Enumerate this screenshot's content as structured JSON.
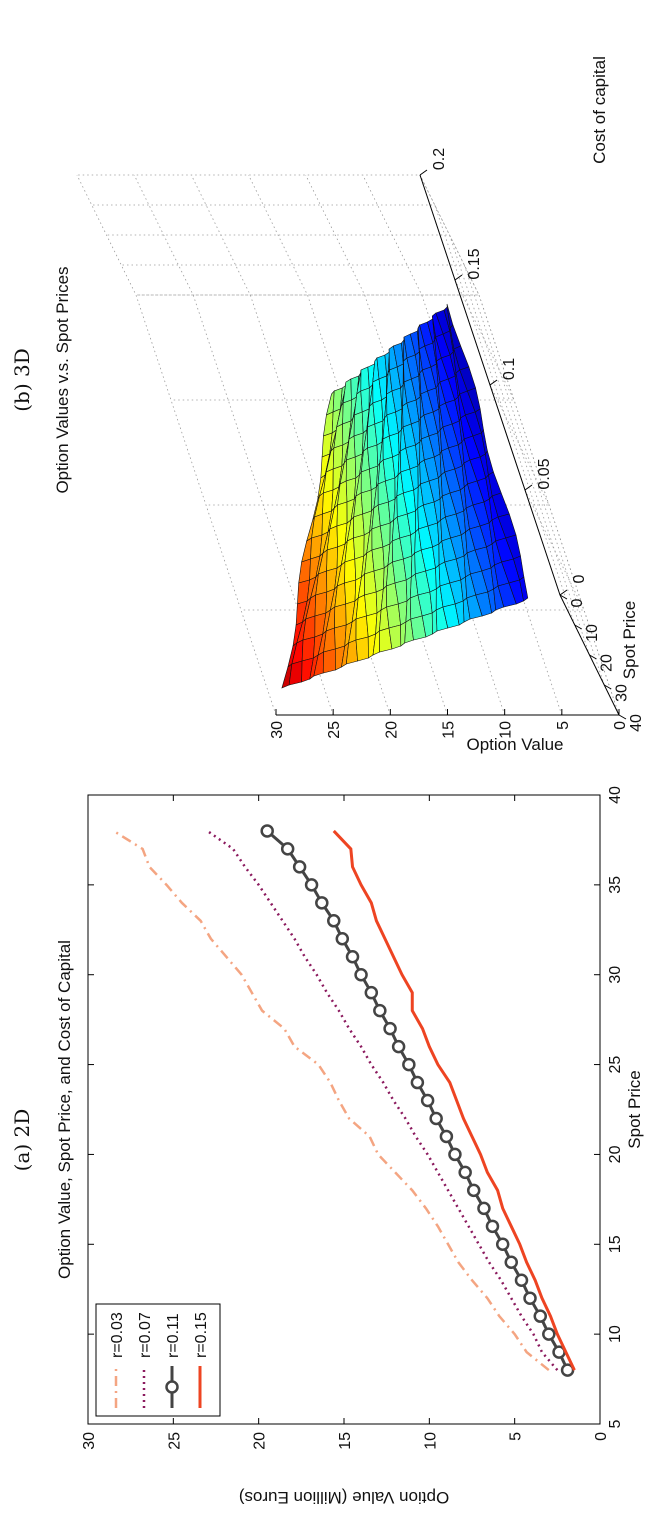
{
  "captions": {
    "a": "(a) 2D",
    "b": "(b) 3D"
  },
  "chart_data": [
    {
      "type": "line",
      "title": "Option Value, Spot Price, and Cost of Capital",
      "xlabel": "Spot Price",
      "ylabel": "Option Value (Million Euros)",
      "xlim": [
        5,
        40
      ],
      "ylim": [
        0,
        30
      ],
      "x_ticks": [
        "5",
        "10",
        "15",
        "20",
        "25",
        "30",
        "35",
        "40"
      ],
      "y_ticks": [
        "0",
        "5",
        "10",
        "15",
        "20",
        "25",
        "30"
      ],
      "legend_position": "top-left",
      "grid": false,
      "x": [
        8,
        9,
        10,
        11,
        12,
        13,
        14,
        15,
        16,
        17,
        18,
        19,
        20,
        21,
        22,
        23,
        24,
        25,
        26,
        27,
        28,
        29,
        30,
        31,
        32,
        33,
        34,
        35,
        36,
        37,
        38
      ],
      "series": [
        {
          "name": "r=0.03",
          "color": "#f4a582",
          "style": "dashdot",
          "values": [
            3.0,
            4.3,
            5.0,
            5.9,
            6.6,
            7.5,
            8.3,
            8.9,
            9.5,
            10.2,
            11.0,
            12.0,
            13.0,
            13.5,
            14.7,
            15.3,
            15.8,
            16.5,
            17.9,
            18.5,
            19.8,
            20.4,
            21.0,
            21.9,
            22.8,
            23.4,
            24.5,
            25.4,
            26.4,
            26.8,
            28.5
          ]
        },
        {
          "name": "r=0.07",
          "color": "#8b1a5e",
          "style": "dotted",
          "values": [
            2.5,
            3.4,
            3.9,
            4.6,
            5.2,
            5.8,
            6.5,
            7.1,
            7.7,
            8.3,
            8.9,
            9.5,
            10.1,
            10.8,
            11.4,
            12.1,
            12.7,
            13.4,
            14.0,
            14.7,
            15.3,
            16.0,
            16.6,
            17.3,
            17.9,
            18.6,
            19.3,
            20.0,
            20.8,
            21.5,
            23.0
          ]
        },
        {
          "name": "r=0.11",
          "color": "#444444",
          "style": "solid-circle",
          "values": [
            1.9,
            2.4,
            3.0,
            3.5,
            4.1,
            4.6,
            5.2,
            5.7,
            6.3,
            6.8,
            7.4,
            7.9,
            8.5,
            9.0,
            9.6,
            10.1,
            10.7,
            11.2,
            11.8,
            12.3,
            12.9,
            13.4,
            14.0,
            14.5,
            15.1,
            15.6,
            16.3,
            16.9,
            17.6,
            18.3,
            19.5
          ]
        },
        {
          "name": "r=0.15",
          "color": "#ee4422",
          "style": "solid",
          "values": [
            1.5,
            2.0,
            2.5,
            2.9,
            3.4,
            3.8,
            4.3,
            4.7,
            5.2,
            5.7,
            6.0,
            6.6,
            7.0,
            7.5,
            8.0,
            8.4,
            8.8,
            9.5,
            10.0,
            10.4,
            11.0,
            11.0,
            11.6,
            12.1,
            12.6,
            13.1,
            13.4,
            14.0,
            14.5,
            14.6,
            15.6
          ]
        }
      ]
    },
    {
      "type": "surface",
      "title": "Option Values v.s. Spot Prices",
      "xlabel": "Spot Price",
      "ylabel": "Cost of capital",
      "zlabel": "Option Value",
      "xlim": [
        0,
        40
      ],
      "ylim": [
        0,
        0.2
      ],
      "zlim": [
        0,
        30
      ],
      "x_ticks": [
        "40",
        "30",
        "20",
        "10",
        "0"
      ],
      "y_ticks": [
        "0",
        "0.05",
        "0.1",
        "0.15",
        "0.2"
      ],
      "z_ticks": [
        "0",
        "5",
        "10",
        "15",
        "20",
        "25",
        "30"
      ],
      "colormap": "jet",
      "grid": true,
      "x_range": [
        8,
        38
      ],
      "y_range": [
        0.01,
        0.15
      ],
      "z_corners": {
        "x8_y0.01": 3.0,
        "x38_y0.01": 28.5,
        "x8_y0.15": 1.5,
        "x38_y0.15": 15.6
      }
    }
  ]
}
